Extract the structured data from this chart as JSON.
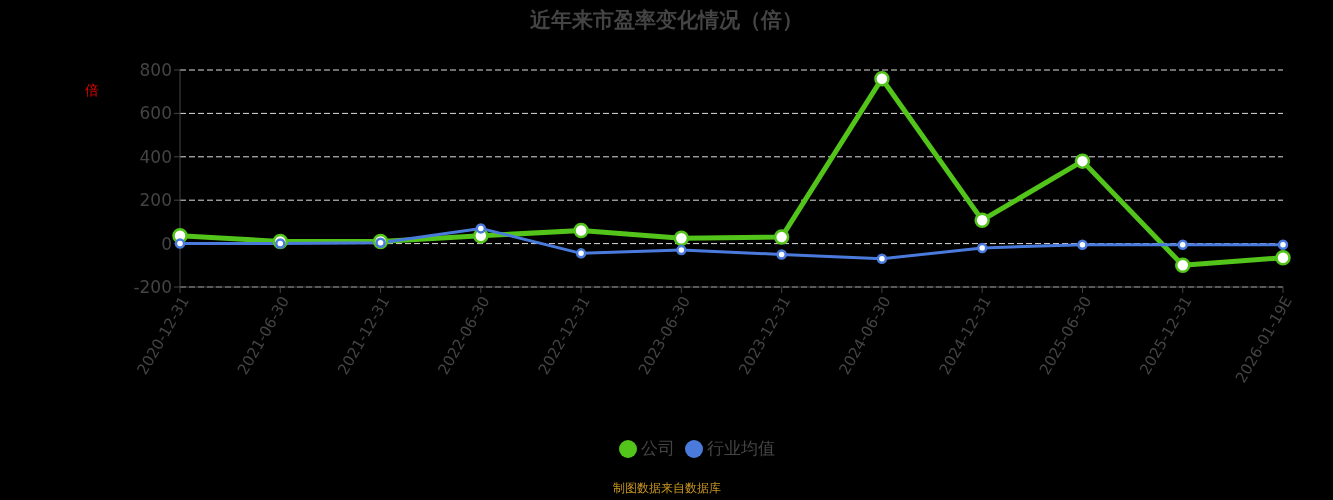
{
  "chart_data": {
    "type": "line",
    "title": "近年来市盈率变化情况（倍）",
    "ylabel": "倍",
    "categories": [
      "2020-12-31",
      "2021-06-30",
      "2021-12-31",
      "2022-06-30",
      "2022-12-31",
      "2023-06-30",
      "2023-12-31",
      "2024-06-30",
      "2024-12-31",
      "2025-06-30",
      "2025-12-31",
      "2026-01-19E"
    ],
    "series": [
      {
        "name": "公司",
        "color": "#52c41a",
        "values": [
          36,
          10,
          10,
          36,
          60,
          25,
          30,
          760,
          108,
          380,
          -100,
          -65
        ]
      },
      {
        "name": "行业均值",
        "color": "#4a7bdc",
        "values": [
          0,
          0,
          4,
          70,
          -45,
          -30,
          -50,
          -70,
          -20,
          -5,
          -5,
          -5
        ]
      }
    ],
    "ylim": [
      -200,
      800
    ],
    "yticks": [
      -200,
      0,
      200,
      400,
      600,
      800
    ],
    "grid": "y",
    "legend": "bottom",
    "marker": "circle",
    "line_style": "solid",
    "annotations": [
      "制图数据来自数据库"
    ]
  }
}
